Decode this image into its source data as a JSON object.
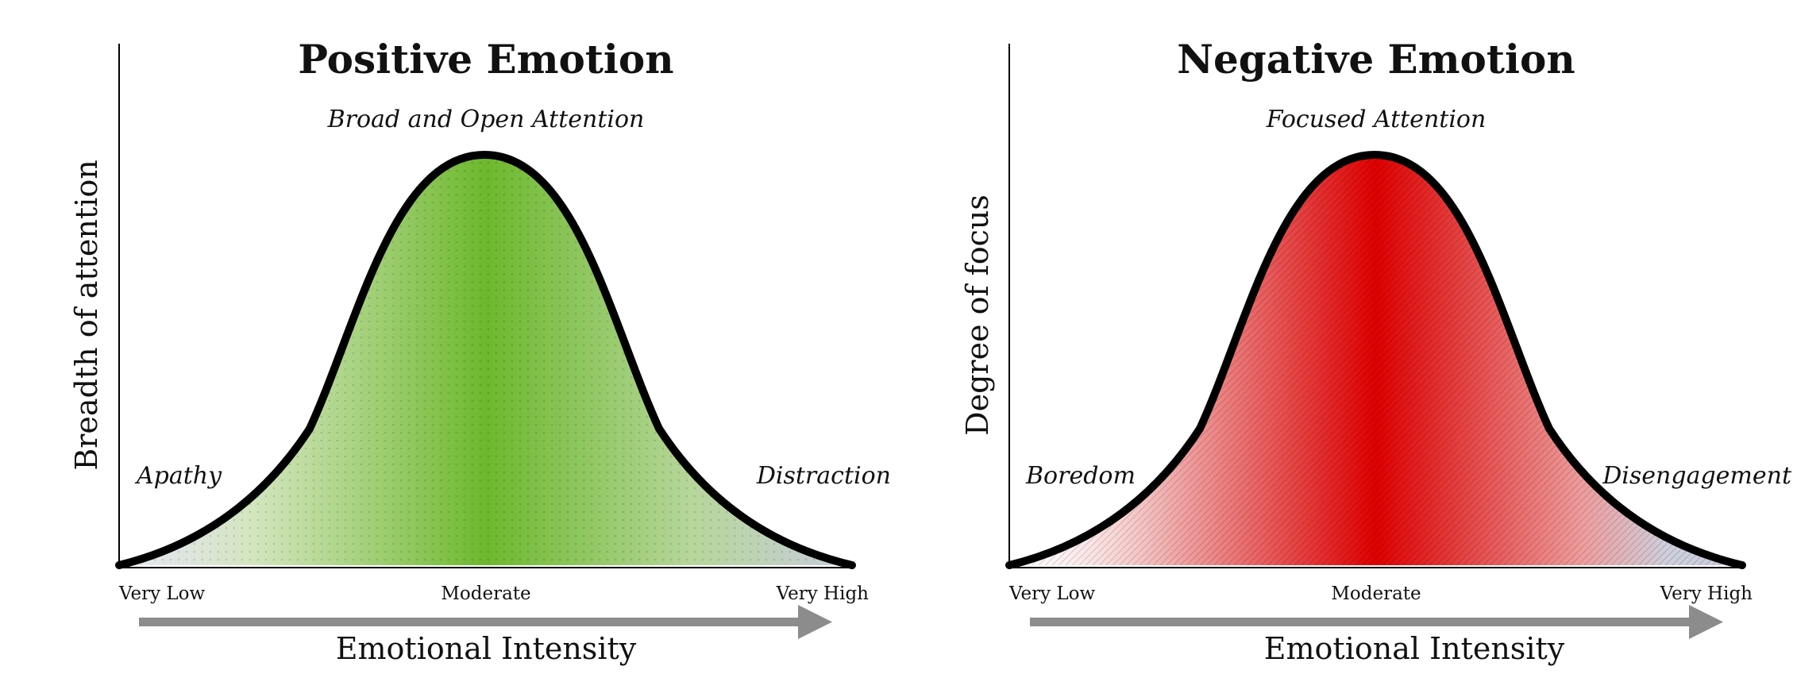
{
  "panels": [
    {
      "title": "Positive Emotion",
      "subtitle": "Broad and Open Attention",
      "ylabel": "Breadth of attention",
      "xlabel": "Emotional Intensity",
      "ticks": [
        "Very Low",
        "Moderate",
        "Very High"
      ],
      "left_label": "Apathy",
      "right_label": "Distraction",
      "fill_color": "#6db82c",
      "edge_color": "#c9ccdf",
      "texture": "dots"
    },
    {
      "title": "Negative Emotion",
      "subtitle": "Focused Attention",
      "ylabel": "Degree of focus",
      "xlabel": "Emotional Intensity",
      "ticks": [
        "Very Low",
        "Moderate",
        "Very High"
      ],
      "left_label": "Boredom",
      "right_label": "Disengagement",
      "fill_color": "#e00000",
      "edge_color": "#c9ccdf",
      "texture": "hatch"
    }
  ],
  "arrow_color": "#8c8c8c"
}
